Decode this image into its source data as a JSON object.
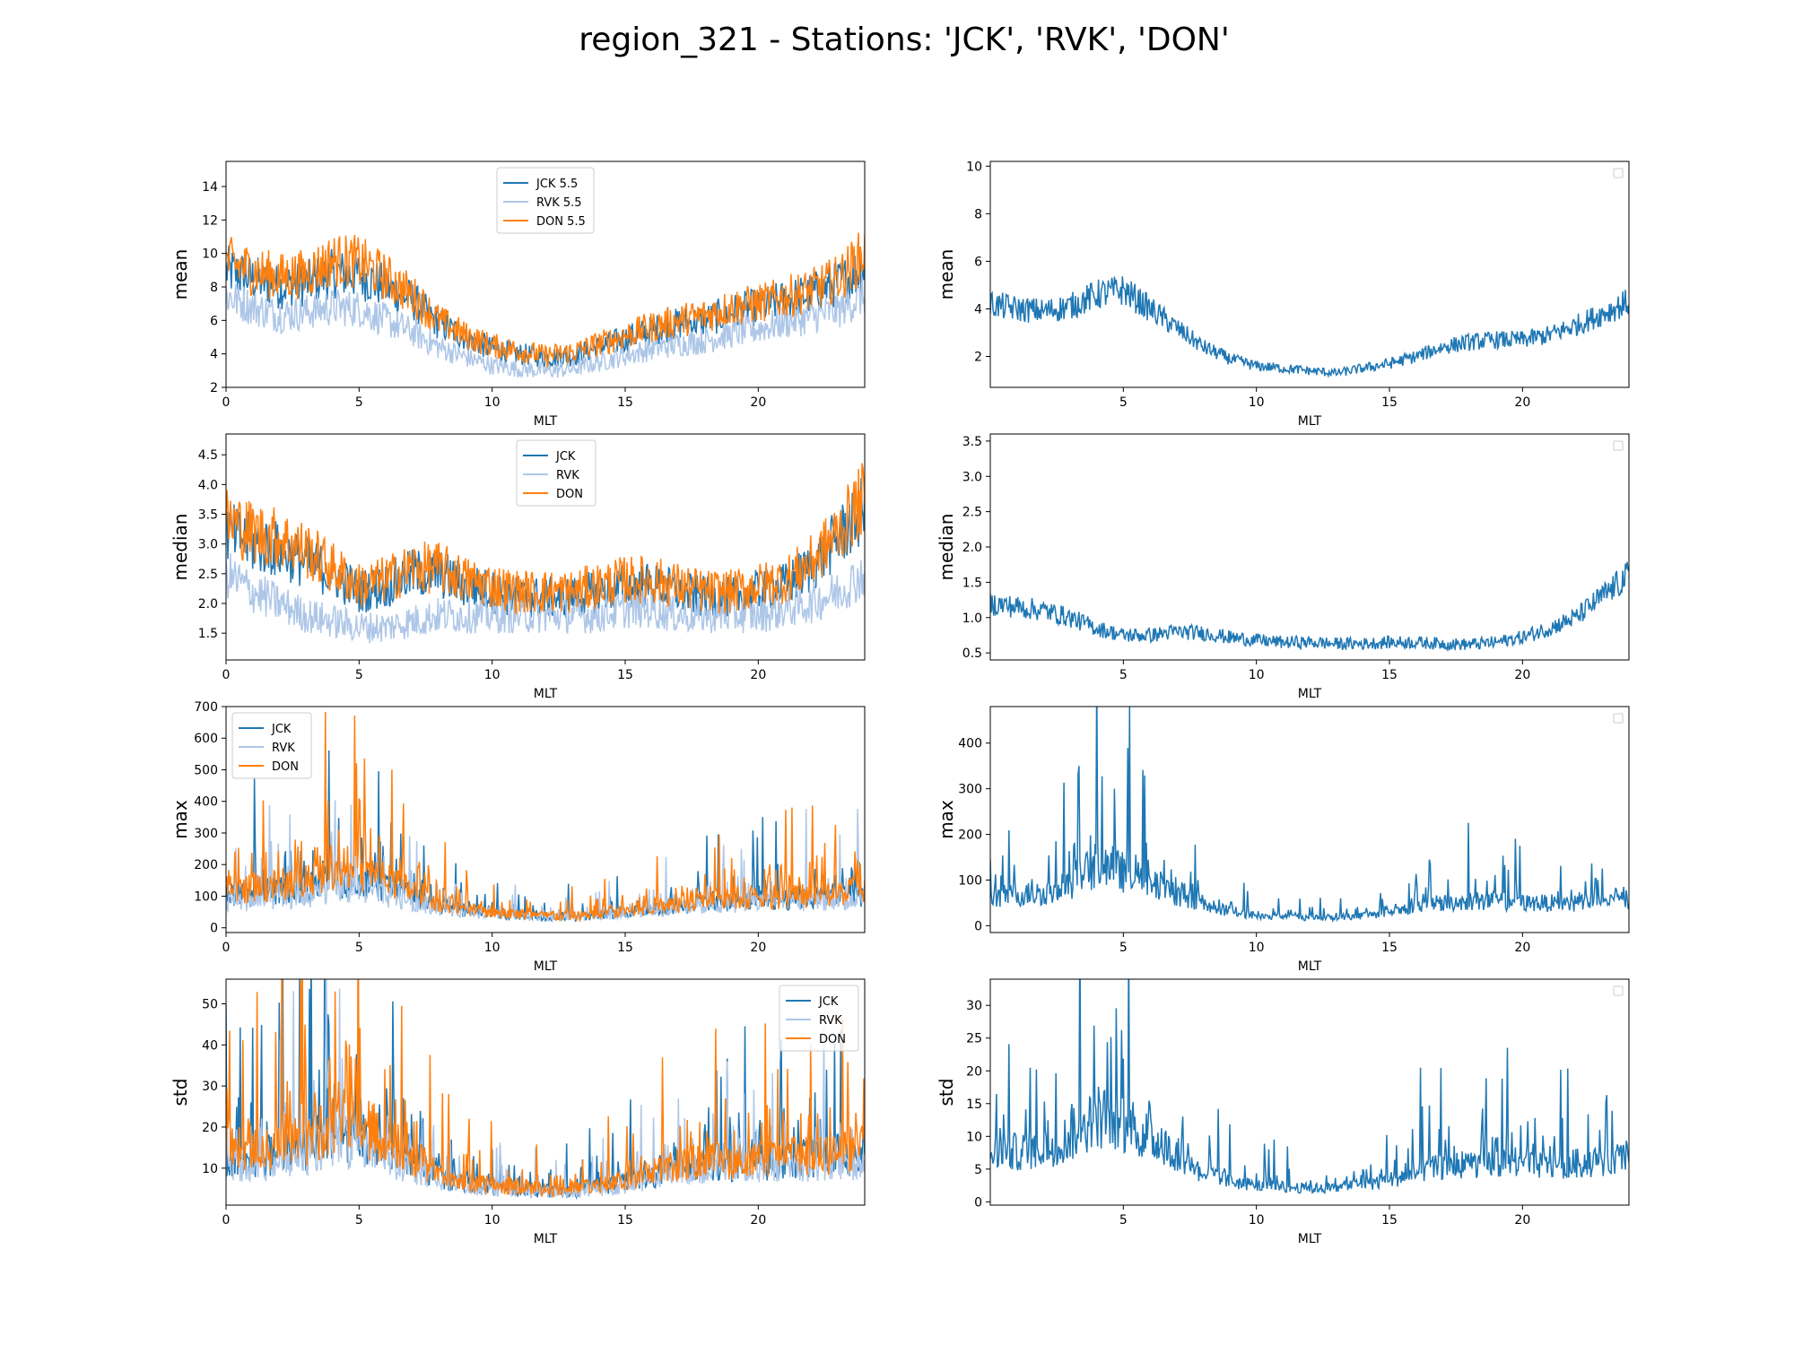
{
  "figure": {
    "title": "region_321 - Stations: 'JCK', 'RVK', 'DON'"
  },
  "colors": {
    "JCK": "#1f77b4",
    "RVK": "#aec7e8",
    "DON": "#ff7f0e",
    "diff": "#1f77b4"
  },
  "chart_data": [
    {
      "type": "line",
      "position": "row1-left",
      "ylabel": "mean",
      "xlabel": "MLT",
      "xlim": [
        0,
        24
      ],
      "ylim": [
        2,
        15.5
      ],
      "xticks": [
        0,
        5,
        10,
        15,
        20
      ],
      "yticks": [
        2,
        4,
        6,
        8,
        10,
        12,
        14
      ],
      "legend": {
        "placement": "top-center",
        "labels": [
          "JCK 5.5",
          "RVK 5.5",
          "DON 5.5"
        ]
      },
      "series": [
        {
          "name": "JCK 5.5",
          "color_key": "JCK",
          "x": [
            0,
            1,
            2,
            3,
            4,
            5,
            6,
            7,
            8,
            9,
            10,
            11,
            12,
            13,
            14,
            15,
            16,
            17,
            18,
            19,
            20,
            21,
            22,
            23,
            24
          ],
          "y": [
            9.0,
            8.5,
            8.0,
            8.2,
            8.8,
            8.7,
            8.0,
            7.2,
            5.8,
            5.0,
            4.3,
            4.0,
            3.8,
            3.9,
            4.4,
            4.9,
            5.4,
            5.8,
            6.0,
            6.5,
            6.8,
            7.2,
            7.6,
            8.2,
            9.2
          ]
        },
        {
          "name": "RVK 5.5",
          "color_key": "RVK",
          "x": [
            0,
            1,
            2,
            3,
            4,
            5,
            6,
            7,
            8,
            9,
            10,
            11,
            12,
            13,
            14,
            15,
            16,
            17,
            18,
            19,
            20,
            21,
            22,
            23,
            24
          ],
          "y": [
            7.5,
            6.8,
            6.3,
            6.5,
            6.8,
            6.7,
            6.0,
            5.3,
            4.4,
            3.8,
            3.3,
            3.1,
            3.0,
            3.1,
            3.5,
            3.9,
            4.3,
            4.6,
            4.8,
            5.2,
            5.5,
            5.9,
            6.2,
            6.6,
            7.5
          ]
        },
        {
          "name": "DON 5.5",
          "color_key": "DON",
          "x": [
            0,
            1,
            2,
            3,
            4,
            5,
            6,
            7,
            8,
            9,
            10,
            11,
            12,
            13,
            14,
            15,
            16,
            17,
            18,
            19,
            20,
            21,
            22,
            23,
            24
          ],
          "y": [
            9.5,
            9.0,
            8.6,
            8.8,
            9.6,
            9.5,
            8.6,
            7.5,
            6.0,
            5.1,
            4.5,
            4.2,
            3.9,
            4.1,
            4.6,
            5.1,
            5.6,
            6.0,
            6.3,
            6.8,
            7.0,
            7.4,
            7.8,
            8.5,
            10.0
          ]
        }
      ]
    },
    {
      "type": "line",
      "position": "row1-right",
      "ylabel": "mean",
      "xlabel": "MLT",
      "xlim": [
        0,
        24
      ],
      "ylim": [
        0.7,
        10.2
      ],
      "xticks": [
        5,
        10,
        15,
        20
      ],
      "yticks": [
        2,
        4,
        6,
        8,
        10
      ],
      "legend": {
        "placement": "top-right",
        "labels": []
      },
      "series": [
        {
          "color_key": "diff",
          "x": [
            0,
            1,
            2,
            3,
            4,
            5,
            6,
            7,
            8,
            9,
            10,
            11,
            12,
            13,
            14,
            15,
            16,
            17,
            18,
            19,
            20,
            21,
            22,
            23,
            24
          ],
          "y": [
            4.2,
            4.0,
            3.9,
            4.1,
            4.6,
            4.8,
            4.0,
            3.2,
            2.4,
            1.9,
            1.6,
            1.5,
            1.4,
            1.3,
            1.5,
            1.7,
            2.0,
            2.4,
            2.6,
            2.7,
            2.7,
            2.9,
            3.3,
            3.8,
            4.3
          ]
        }
      ]
    },
    {
      "type": "line",
      "position": "row2-left",
      "ylabel": "median",
      "xlabel": "MLT",
      "xlim": [
        0,
        24
      ],
      "ylim": [
        1.05,
        4.85
      ],
      "xticks": [
        0,
        5,
        10,
        15,
        20
      ],
      "yticks": [
        1.5,
        2.0,
        2.5,
        3.0,
        3.5,
        4.0,
        4.5
      ],
      "legend": {
        "placement": "top-center",
        "labels": [
          "JCK",
          "RVK",
          "DON"
        ]
      },
      "series": [
        {
          "name": "JCK",
          "color_key": "JCK",
          "x": [
            0,
            1,
            2,
            3,
            4,
            5,
            6,
            7,
            8,
            9,
            10,
            11,
            12,
            13,
            14,
            15,
            16,
            17,
            18,
            19,
            20,
            21,
            22,
            23,
            24
          ],
          "y": [
            3.2,
            3.0,
            2.9,
            2.7,
            2.5,
            2.2,
            2.3,
            2.5,
            2.5,
            2.3,
            2.2,
            2.1,
            2.1,
            2.1,
            2.2,
            2.3,
            2.3,
            2.2,
            2.1,
            2.1,
            2.2,
            2.3,
            2.6,
            3.1,
            3.6
          ]
        },
        {
          "name": "RVK",
          "color_key": "RVK",
          "x": [
            0,
            1,
            2,
            3,
            4,
            5,
            6,
            7,
            8,
            9,
            10,
            11,
            12,
            13,
            14,
            15,
            16,
            17,
            18,
            19,
            20,
            21,
            22,
            23,
            24
          ],
          "y": [
            2.5,
            2.2,
            2.0,
            1.8,
            1.7,
            1.6,
            1.6,
            1.7,
            1.8,
            1.8,
            1.8,
            1.8,
            1.8,
            1.8,
            1.8,
            1.9,
            1.9,
            1.8,
            1.8,
            1.8,
            1.8,
            1.9,
            2.0,
            2.2,
            2.5
          ]
        },
        {
          "name": "DON",
          "color_key": "DON",
          "x": [
            0,
            1,
            2,
            3,
            4,
            5,
            6,
            7,
            8,
            9,
            10,
            11,
            12,
            13,
            14,
            15,
            16,
            17,
            18,
            19,
            20,
            21,
            22,
            23,
            24
          ],
          "y": [
            3.4,
            3.2,
            3.1,
            2.9,
            2.6,
            2.3,
            2.4,
            2.6,
            2.6,
            2.4,
            2.3,
            2.2,
            2.2,
            2.2,
            2.3,
            2.4,
            2.4,
            2.3,
            2.2,
            2.2,
            2.3,
            2.4,
            2.7,
            3.2,
            3.8
          ]
        }
      ]
    },
    {
      "type": "line",
      "position": "row2-right",
      "ylabel": "median",
      "xlabel": "MLT",
      "xlim": [
        0,
        24
      ],
      "ylim": [
        0.4,
        3.6
      ],
      "xticks": [
        5,
        10,
        15,
        20
      ],
      "yticks": [
        0.5,
        1.0,
        1.5,
        2.0,
        2.5,
        3.0,
        3.5
      ],
      "legend": {
        "placement": "top-right",
        "labels": []
      },
      "series": [
        {
          "color_key": "diff",
          "x": [
            0,
            1,
            2,
            3,
            4,
            5,
            6,
            7,
            8,
            9,
            10,
            11,
            12,
            13,
            14,
            15,
            16,
            17,
            18,
            19,
            20,
            21,
            22,
            23,
            24
          ],
          "y": [
            1.2,
            1.15,
            1.1,
            1.0,
            0.85,
            0.75,
            0.75,
            0.8,
            0.78,
            0.72,
            0.68,
            0.65,
            0.65,
            0.63,
            0.63,
            0.65,
            0.65,
            0.63,
            0.62,
            0.65,
            0.72,
            0.85,
            1.0,
            1.3,
            1.6
          ]
        }
      ]
    },
    {
      "type": "line",
      "position": "row3-left",
      "ylabel": "max",
      "xlabel": "MLT",
      "xlim": [
        0,
        24
      ],
      "ylim": [
        -15,
        700
      ],
      "xticks": [
        0,
        5,
        10,
        15,
        20
      ],
      "yticks": [
        0,
        100,
        200,
        300,
        400,
        500,
        600,
        700
      ],
      "legend": {
        "placement": "top-left",
        "labels": [
          "JCK",
          "RVK",
          "DON"
        ]
      },
      "series": [
        {
          "name": "JCK",
          "color_key": "JCK",
          "x": [
            0,
            1,
            2,
            3,
            4,
            5,
            6,
            7,
            8,
            9,
            10,
            11,
            12,
            13,
            14,
            15,
            16,
            17,
            18,
            19,
            20,
            21,
            22,
            23,
            24
          ],
          "y": [
            110,
            120,
            130,
            140,
            170,
            160,
            140,
            110,
            80,
            60,
            50,
            45,
            40,
            40,
            45,
            55,
            65,
            75,
            85,
            90,
            95,
            100,
            105,
            110,
            120
          ]
        },
        {
          "name": "RVK",
          "color_key": "RVK",
          "x": [
            0,
            1,
            2,
            3,
            4,
            5,
            6,
            7,
            8,
            9,
            10,
            11,
            12,
            13,
            14,
            15,
            16,
            17,
            18,
            19,
            20,
            21,
            22,
            23,
            24
          ],
          "y": [
            90,
            95,
            100,
            110,
            140,
            130,
            110,
            90,
            70,
            55,
            45,
            40,
            38,
            38,
            42,
            50,
            60,
            70,
            80,
            85,
            90,
            95,
            95,
            95,
            100
          ]
        },
        {
          "name": "DON",
          "color_key": "DON",
          "x": [
            0,
            1,
            2,
            3,
            4,
            5,
            6,
            7,
            8,
            9,
            10,
            11,
            12,
            13,
            14,
            15,
            16,
            17,
            18,
            19,
            20,
            21,
            22,
            23,
            24
          ],
          "y": [
            130,
            140,
            150,
            170,
            220,
            200,
            170,
            130,
            90,
            65,
            55,
            48,
            42,
            42,
            48,
            60,
            75,
            90,
            100,
            105,
            105,
            110,
            115,
            120,
            140
          ]
        }
      ]
    },
    {
      "type": "line",
      "position": "row3-right",
      "ylabel": "max",
      "xlabel": "MLT",
      "xlim": [
        0,
        24
      ],
      "ylim": [
        -15,
        480
      ],
      "xticks": [
        5,
        10,
        15,
        20
      ],
      "yticks": [
        0,
        100,
        200,
        300,
        400
      ],
      "legend": {
        "placement": "top-right",
        "labels": []
      },
      "series": [
        {
          "color_key": "diff",
          "x": [
            0,
            1,
            2,
            3,
            4,
            5,
            6,
            7,
            8,
            9,
            10,
            11,
            12,
            13,
            14,
            15,
            16,
            17,
            18,
            19,
            20,
            21,
            22,
            23,
            24
          ],
          "y": [
            70,
            75,
            80,
            100,
            150,
            130,
            100,
            75,
            50,
            35,
            25,
            22,
            20,
            20,
            25,
            35,
            45,
            55,
            60,
            60,
            55,
            55,
            55,
            60,
            65
          ]
        }
      ]
    },
    {
      "type": "line",
      "position": "row4-left",
      "ylabel": "std",
      "xlabel": "MLT",
      "xlim": [
        0,
        24
      ],
      "ylim": [
        1,
        56
      ],
      "xticks": [
        0,
        5,
        10,
        15,
        20
      ],
      "yticks": [
        10,
        20,
        30,
        40,
        50
      ],
      "legend": {
        "placement": "top-right",
        "labels": [
          "JCK",
          "RVK",
          "DON"
        ]
      },
      "series": [
        {
          "name": "JCK",
          "color_key": "JCK",
          "x": [
            0,
            1,
            2,
            3,
            4,
            5,
            6,
            7,
            8,
            9,
            10,
            11,
            12,
            13,
            14,
            15,
            16,
            17,
            18,
            19,
            20,
            21,
            22,
            23,
            24
          ],
          "y": [
            14,
            14,
            15,
            17,
            21,
            20,
            17,
            13,
            9,
            7,
            6,
            5.5,
            5,
            5,
            6,
            7,
            9,
            11,
            12,
            12,
            12,
            13,
            14,
            14,
            15
          ]
        },
        {
          "name": "RVK",
          "color_key": "RVK",
          "x": [
            0,
            1,
            2,
            3,
            4,
            5,
            6,
            7,
            8,
            9,
            10,
            11,
            12,
            13,
            14,
            15,
            16,
            17,
            18,
            19,
            20,
            21,
            22,
            23,
            24
          ],
          "y": [
            12,
            12,
            13,
            15,
            18,
            17,
            14,
            11,
            8,
            6.5,
            5.5,
            5,
            4.5,
            4.5,
            5.5,
            6.5,
            8,
            10,
            11,
            11,
            11,
            12,
            12,
            12,
            13
          ]
        },
        {
          "name": "DON",
          "color_key": "DON",
          "x": [
            0,
            1,
            2,
            3,
            4,
            5,
            6,
            7,
            8,
            9,
            10,
            11,
            12,
            13,
            14,
            15,
            16,
            17,
            18,
            19,
            20,
            21,
            22,
            23,
            24
          ],
          "y": [
            16,
            16,
            17,
            19,
            24,
            23,
            19,
            14,
            10,
            7.5,
            6.5,
            6,
            5.5,
            5.5,
            6.5,
            7.5,
            10,
            12,
            13,
            13,
            13,
            14,
            15,
            15,
            17
          ]
        }
      ]
    },
    {
      "type": "line",
      "position": "row4-right",
      "ylabel": "std",
      "xlabel": "MLT",
      "xlim": [
        0,
        24
      ],
      "ylim": [
        -0.5,
        34
      ],
      "xticks": [
        5,
        10,
        15,
        20
      ],
      "yticks": [
        0,
        5,
        10,
        15,
        20,
        25,
        30
      ],
      "legend": {
        "placement": "top-right",
        "labels": []
      },
      "series": [
        {
          "color_key": "diff",
          "x": [
            0,
            1,
            2,
            3,
            4,
            5,
            6,
            7,
            8,
            9,
            10,
            11,
            12,
            13,
            14,
            15,
            16,
            17,
            18,
            19,
            20,
            21,
            22,
            23,
            24
          ],
          "y": [
            8,
            8.5,
            9,
            11,
            15,
            13,
            11,
            8,
            5,
            3.5,
            2.8,
            2.5,
            2.3,
            2.3,
            3,
            3.8,
            5,
            6,
            6.5,
            6.5,
            6.2,
            6.3,
            6.5,
            7,
            7.5
          ]
        }
      ]
    }
  ]
}
